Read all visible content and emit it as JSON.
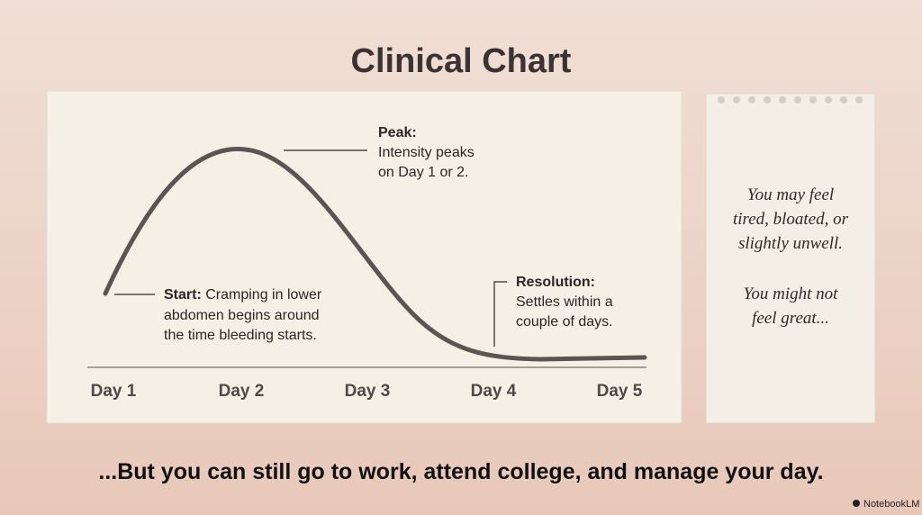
{
  "title": "Clinical Chart",
  "chart": {
    "x_labels": [
      "Day 1",
      "Day 2",
      "Day 3",
      "Day 4",
      "Day 5"
    ],
    "annotations": {
      "start": {
        "label": "Start:",
        "lines": [
          "Cramping in lower",
          "abdomen begins around",
          "the time bleeding starts."
        ]
      },
      "peak": {
        "label": "Peak:",
        "lines": [
          "Intensity peaks",
          "on Day 1 or 2."
        ]
      },
      "resolution": {
        "label": "Resolution:",
        "lines": [
          "Settles within a",
          "couple of days."
        ]
      }
    }
  },
  "note": {
    "lines": [
      "You may feel",
      "tired, bloated, or",
      "slightly unwell.",
      "You might not",
      "feel great..."
    ]
  },
  "footer": "...But you can still go to work, attend college, and manage your day.",
  "brand": "NotebookLM"
}
